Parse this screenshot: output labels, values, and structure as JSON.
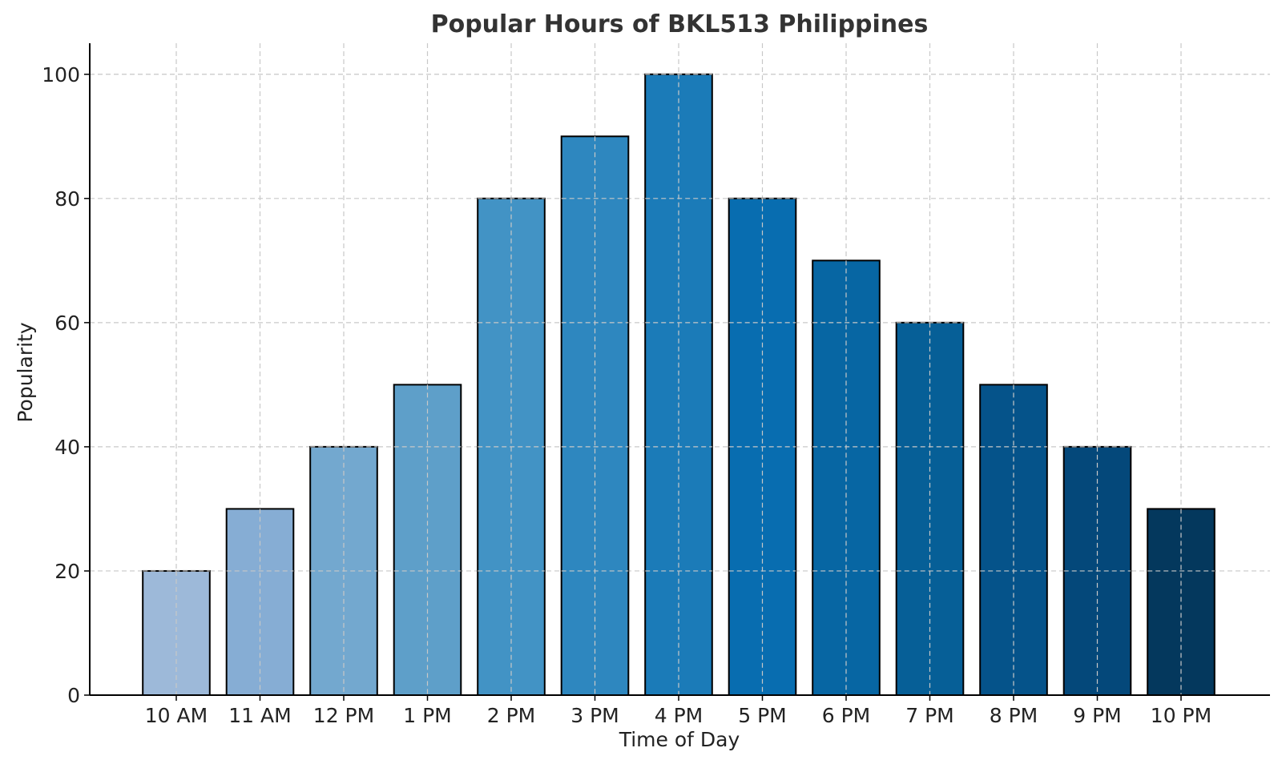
{
  "chart_data": {
    "type": "bar",
    "title": "Popular Hours of BKL513 Philippines",
    "xlabel": "Time of Day",
    "ylabel": "Popularity",
    "categories": [
      "10 AM",
      "11 AM",
      "12 PM",
      "1 PM",
      "2 PM",
      "3 PM",
      "4 PM",
      "5 PM",
      "6 PM",
      "7 PM",
      "8 PM",
      "9 PM",
      "10 PM"
    ],
    "values": [
      20,
      30,
      40,
      50,
      80,
      90,
      100,
      80,
      70,
      60,
      50,
      40,
      30
    ],
    "colors": [
      "#9db9d9",
      "#86add4",
      "#73a8cf",
      "#5e9fc9",
      "#4293c5",
      "#2e87bf",
      "#1b7bb8",
      "#086db0",
      "#0766a3",
      "#065f97",
      "#05538a",
      "#04487a",
      "#04385d"
    ],
    "ylim": [
      0,
      105
    ],
    "yticks": [
      0,
      20,
      40,
      60,
      80,
      100
    ],
    "grid": true,
    "legend": "none"
  }
}
